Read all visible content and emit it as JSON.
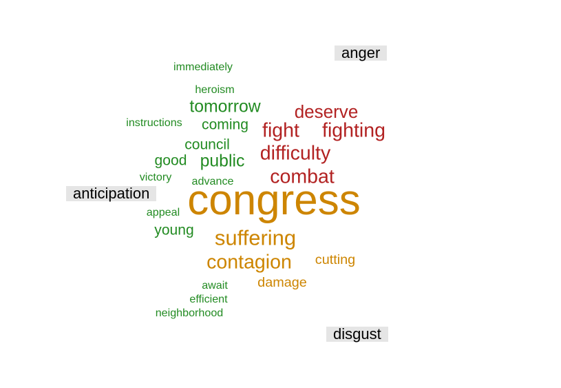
{
  "chart_data": {
    "type": "wordcloud",
    "groups": [
      {
        "name": "anger",
        "color": "#b22222"
      },
      {
        "name": "anticipation",
        "color": "#228b22"
      },
      {
        "name": "disgust",
        "color": "#cd8500"
      }
    ],
    "words": [
      {
        "text": "congress",
        "group": "disgust",
        "size": 10
      },
      {
        "text": "suffering",
        "group": "disgust",
        "size": 5
      },
      {
        "text": "contagion",
        "group": "disgust",
        "size": 4.6
      },
      {
        "text": "cutting",
        "group": "disgust",
        "size": 3.2
      },
      {
        "text": "damage",
        "group": "disgust",
        "size": 3.2
      },
      {
        "text": "deserve",
        "group": "anger",
        "size": 4.2
      },
      {
        "text": "fight",
        "group": "anger",
        "size": 4.6
      },
      {
        "text": "fighting",
        "group": "anger",
        "size": 4.6
      },
      {
        "text": "difficulty",
        "group": "anger",
        "size": 4.6
      },
      {
        "text": "combat",
        "group": "anger",
        "size": 4.6
      },
      {
        "text": "immediately",
        "group": "anticipation",
        "size": 2.6
      },
      {
        "text": "heroism",
        "group": "anticipation",
        "size": 2.6
      },
      {
        "text": "tomorrow",
        "group": "anticipation",
        "size": 4
      },
      {
        "text": "instructions",
        "group": "anticipation",
        "size": 2.6
      },
      {
        "text": "coming",
        "group": "anticipation",
        "size": 3.4
      },
      {
        "text": "council",
        "group": "anticipation",
        "size": 3.4
      },
      {
        "text": "good",
        "group": "anticipation",
        "size": 3.4
      },
      {
        "text": "public",
        "group": "anticipation",
        "size": 4
      },
      {
        "text": "victory",
        "group": "anticipation",
        "size": 2.6
      },
      {
        "text": "advance",
        "group": "anticipation",
        "size": 2.6
      },
      {
        "text": "appeal",
        "group": "anticipation",
        "size": 2.6
      },
      {
        "text": "young",
        "group": "anticipation",
        "size": 3.4
      },
      {
        "text": "await",
        "group": "anticipation",
        "size": 2.6
      },
      {
        "text": "efficient",
        "group": "anticipation",
        "size": 2.6
      },
      {
        "text": "neighborhood",
        "group": "anticipation",
        "size": 2.6
      }
    ]
  }
}
